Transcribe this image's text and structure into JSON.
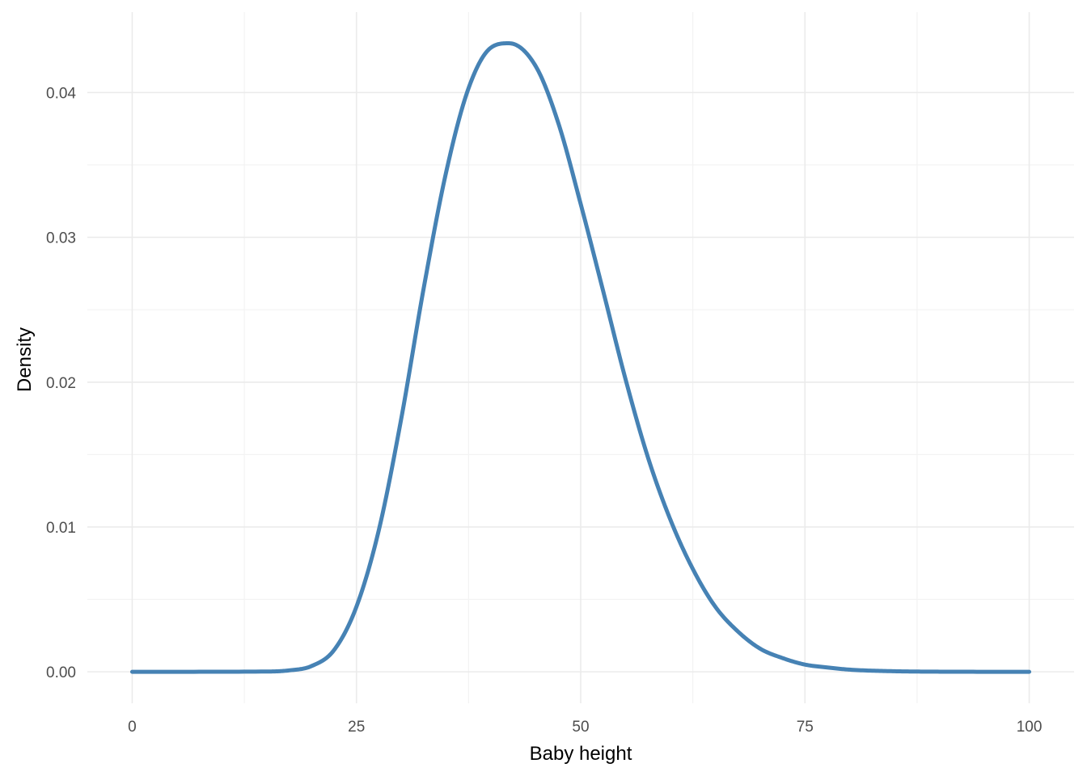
{
  "chart_data": {
    "type": "line",
    "title": "",
    "xlabel": "Baby height",
    "ylabel": "Density",
    "xlim": [
      -5,
      105
    ],
    "ylim": [
      -0.00217,
      0.04555
    ],
    "x_ticks": [
      0,
      25,
      50,
      75,
      100
    ],
    "x_tick_labels": [
      "0",
      "25",
      "50",
      "75",
      "100"
    ],
    "y_ticks": [
      0,
      0.01,
      0.02,
      0.03,
      0.04
    ],
    "y_tick_labels": [
      "0.00",
      "0.01",
      "0.02",
      "0.03",
      "0.04"
    ],
    "grid": true,
    "legend": "none",
    "line_color": "#4682b4",
    "series": [
      {
        "x": [
          0,
          15,
          17.5,
          20,
          22.5,
          25,
          27.5,
          30,
          32.5,
          35,
          37.5,
          40,
          42,
          45,
          47.5,
          50,
          52.5,
          55,
          57.5,
          60,
          62.5,
          65,
          67.5,
          70,
          72.5,
          75,
          77.5,
          80,
          85,
          90,
          100
        ],
        "values": [
          0,
          2e-05,
          0.0001,
          0.0004,
          0.0015,
          0.0045,
          0.0098,
          0.0175,
          0.0265,
          0.0345,
          0.0403,
          0.0431,
          0.0434,
          0.0418,
          0.0379,
          0.0323,
          0.0263,
          0.0202,
          0.0148,
          0.0105,
          0.0071,
          0.0045,
          0.0028,
          0.0016,
          0.00095,
          0.0005,
          0.0003,
          0.00015,
          4e-05,
          1e-05,
          0
        ]
      }
    ]
  }
}
